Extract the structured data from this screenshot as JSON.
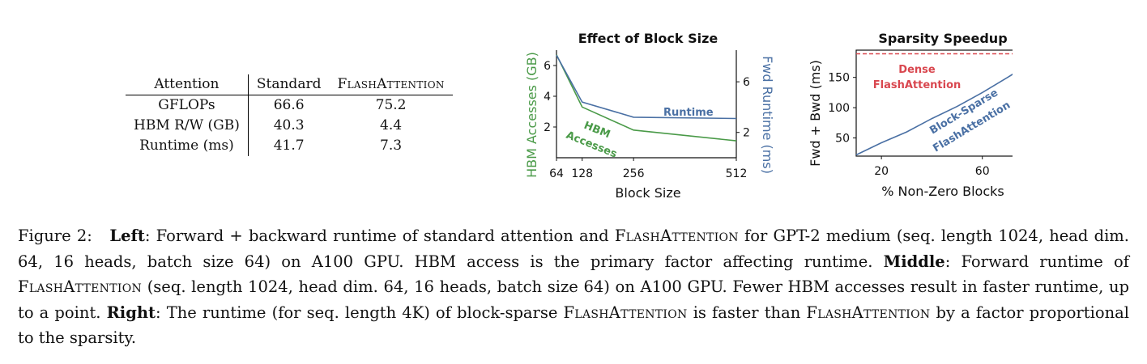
{
  "table": {
    "headers": [
      "Attention",
      "Standard",
      "FlashAttention"
    ],
    "rows": [
      [
        "GFLOPs",
        "66.6",
        "75.2"
      ],
      [
        "HBM R/W (GB)",
        "40.3",
        "4.4"
      ],
      [
        "Runtime (ms)",
        "41.7",
        "7.3"
      ]
    ]
  },
  "chart_data": [
    {
      "type": "line",
      "title": "Effect of Block Size",
      "xlabel": "Block Size",
      "ylabel_left": "HBM Accesses (GB)",
      "ylabel_right": "Fwd Runtime (ms)",
      "x": [
        64,
        128,
        256,
        512
      ],
      "xticks": [
        "64",
        "128",
        "256",
        "512"
      ],
      "y_left_ticks": [
        "2",
        "4",
        "6"
      ],
      "y_right_ticks": [
        "2",
        "6"
      ],
      "ylim_left": [
        0,
        7
      ],
      "ylim_right": [
        0,
        8.5
      ],
      "series": [
        {
          "name": "HBM Accesses",
          "axis": "left",
          "color": "#4a9a48",
          "values": [
            6.7,
            3.3,
            1.8,
            1.1
          ]
        },
        {
          "name": "Runtime",
          "axis": "right",
          "color": "#4a70a4",
          "values": [
            8.1,
            4.4,
            3.2,
            3.1
          ]
        }
      ],
      "annotations": [
        "HBM",
        "Accesses",
        "Runtime"
      ]
    },
    {
      "type": "line",
      "title": "Sparsity Speedup",
      "xlabel": "% Non-Zero Blocks",
      "ylabel": "Fwd + Bwd (ms)",
      "xlim": [
        10,
        80
      ],
      "ylim": [
        20,
        195
      ],
      "xticks": [
        "20",
        "60"
      ],
      "yticks": [
        "50",
        "100",
        "150"
      ],
      "series": [
        {
          "name": "Dense FlashAttention",
          "color": "#d9474f",
          "dashed": true,
          "x": [
            10,
            80
          ],
          "values": [
            189,
            189
          ]
        },
        {
          "name": "Block-Sparse FlashAttention",
          "color": "#4a70a4",
          "x": [
            10,
            20,
            30,
            40,
            50,
            60,
            70,
            80
          ],
          "values": [
            22,
            42,
            60,
            82,
            102,
            125,
            150,
            176
          ]
        }
      ],
      "annotations": [
        "Dense",
        "FlashAttention",
        "Block-Sparse",
        "FlashAttention"
      ]
    }
  ],
  "caption": {
    "prefix": "Figure 2:",
    "left_label": "Left",
    "left_text": ": Forward + backward runtime of standard attention and ",
    "fa1": "FlashAttention",
    "after_fa1": " for GPT-2 medium (seq. length 1024, head dim. 64, 16 heads, batch size 64) on A100 GPU. HBM access is the primary factor affecting runtime. ",
    "middle_label": "Middle",
    "middle_text": ": Forward runtime of ",
    "fa2": "FlashAttention",
    "after_fa2": " (seq. length 1024, head dim. 64, 16 heads, batch size 64) on A100 GPU. Fewer HBM accesses result in faster runtime, up to a point. ",
    "right_label": "Right",
    "right_text": ": The runtime (for seq. length 4K) of block-sparse ",
    "fa3": "FlashAttention",
    "after_fa3": " is faster than ",
    "fa4": "FlashAttention",
    "after_fa4": " by a factor proportional to the sparsity."
  }
}
